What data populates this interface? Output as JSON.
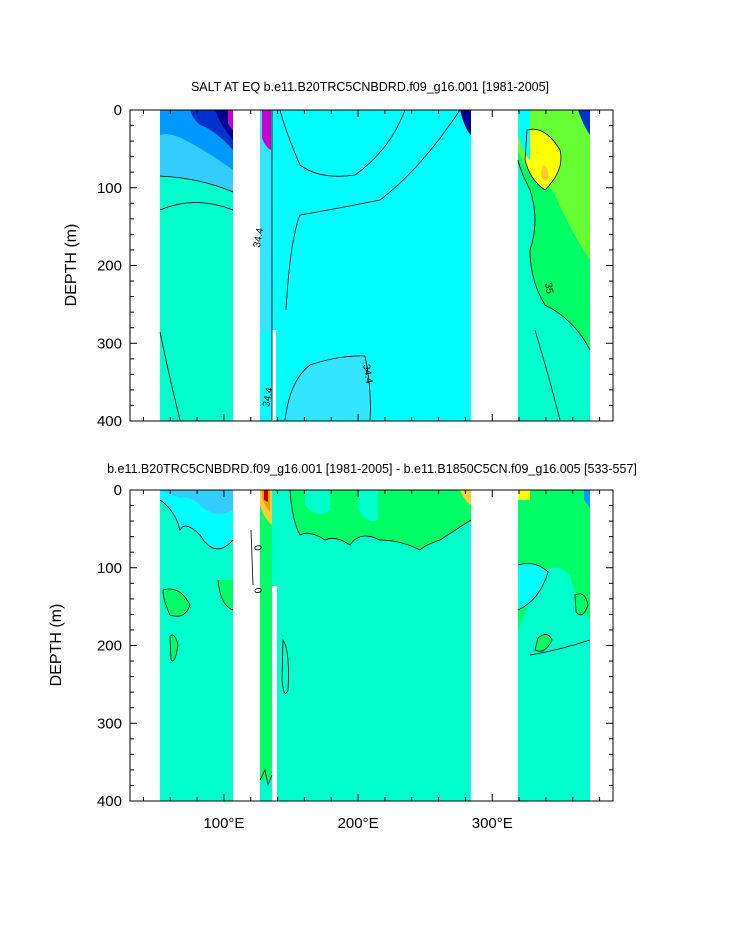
{
  "chart_data": [
    {
      "type": "contour",
      "title": "SALT AT EQ b.e11.B20TRC5CNBDRD.f09_g16.001 [1981-2005]",
      "ylabel": "DEPTH (m)",
      "xlabel": "",
      "yticks": [
        "0",
        "100",
        "200",
        "300",
        "400"
      ],
      "ylim": [
        400,
        0
      ],
      "xlim": [
        30,
        390
      ],
      "xticks": [],
      "contour_labels": [
        {
          "text": "34.4",
          "x": 128,
          "y": 165
        },
        {
          "text": "34.4",
          "x": 135,
          "y": 370
        },
        {
          "text": "34.4",
          "x": 205,
          "y": 340
        },
        {
          "text": "35",
          "x": 340,
          "y": 230
        }
      ],
      "ocean_ranges_lon": [
        [
          45,
          99
        ],
        [
          118,
          278
        ],
        [
          314,
          369
        ]
      ]
    },
    {
      "type": "contour",
      "title": "b.e11.B20TRC5CNBDRD.f09_g16.001 [1981-2005] - b.e11.B1850C5CN.f09_g16.005 [533-557]",
      "ylabel": "DEPTH (m)",
      "xlabel": "",
      "yticks": [
        "0",
        "100",
        "200",
        "300",
        "400"
      ],
      "ylim": [
        400,
        0
      ],
      "xlim": [
        30,
        390
      ],
      "xticks": [
        {
          "value": 100,
          "label": "100°E"
        },
        {
          "value": 200,
          "label": "200°E"
        },
        {
          "value": 300,
          "label": "300°E"
        }
      ],
      "contour_labels": [
        {
          "text": "0",
          "x": 123,
          "y": 75
        },
        {
          "text": "0",
          "x": 123,
          "y": 130
        }
      ],
      "ocean_ranges_lon": [
        [
          45,
          99
        ],
        [
          118,
          278
        ],
        [
          314,
          369
        ]
      ]
    }
  ],
  "colors": {
    "base_teal": "#00ffcc",
    "cyan": "#00ffff",
    "light_blue": "#33e6ff",
    "sky_blue": "#33ccff",
    "blue": "#0099ff",
    "deep_blue": "#0033cc",
    "navy": "#000099",
    "magenta": "#cc00cc",
    "green": "#00ff66",
    "light_green": "#66ff33",
    "yellow": "#ffff00",
    "gold": "#ffcc33",
    "orange": "#ff9900",
    "red": "#b30000"
  }
}
